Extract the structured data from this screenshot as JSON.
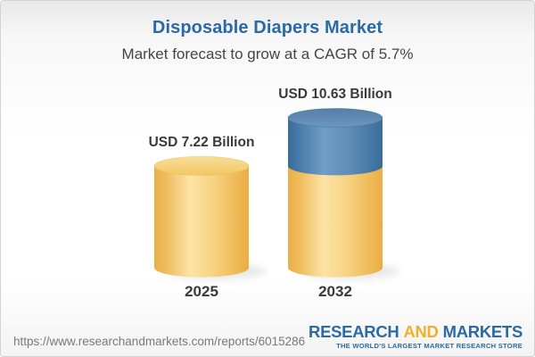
{
  "header": {
    "title": "Disposable Diapers Market",
    "subtitle": "Market forecast to grow at a CAGR of 5.7%"
  },
  "chart_data": {
    "type": "bar",
    "subtype": "3d-cylinder-stacked",
    "title": "Disposable Diapers Market",
    "subtitle": "Market forecast to grow at a CAGR of 5.7%",
    "categories": [
      "2025",
      "2032"
    ],
    "values": [
      7.22,
      10.63
    ],
    "value_labels": [
      "USD 7.22 Billion",
      "USD 10.63 Billion"
    ],
    "unit": "USD Billion",
    "cagr_pct": 5.7,
    "ylim": [
      0,
      10.63
    ],
    "grid": false,
    "legend": false,
    "segment_colors": {
      "base": "#f3c662",
      "growth": "#4f7fac"
    },
    "note": "2032 bar shows base value (gold) plus forecast growth increment (blue)"
  },
  "footer": {
    "report_url": "https://www.researchandmarkets.com/reports/6015286",
    "logo": {
      "word1": "RESEARCH",
      "word2": "AND",
      "word3": "MARKETS",
      "tagline": "THE WORLD'S LARGEST MARKET RESEARCH STORE"
    }
  },
  "colors": {
    "title_blue": "#2a6aa9",
    "subtitle_gray": "#454545",
    "label_dark": "#3a3a3a",
    "url_gray": "#7a7a7a",
    "logo_blue": "#2b6aa4",
    "logo_gold": "#efb02e",
    "bar_gold_edge": "#eaaf46",
    "bar_gold_mid": "#fce3a6",
    "bar_gold_top": "#f6d584",
    "bar_blue_edge": "#3a6c9b",
    "bar_blue_mid": "#6f9dc5",
    "bar_blue_top": "#6090ba"
  }
}
